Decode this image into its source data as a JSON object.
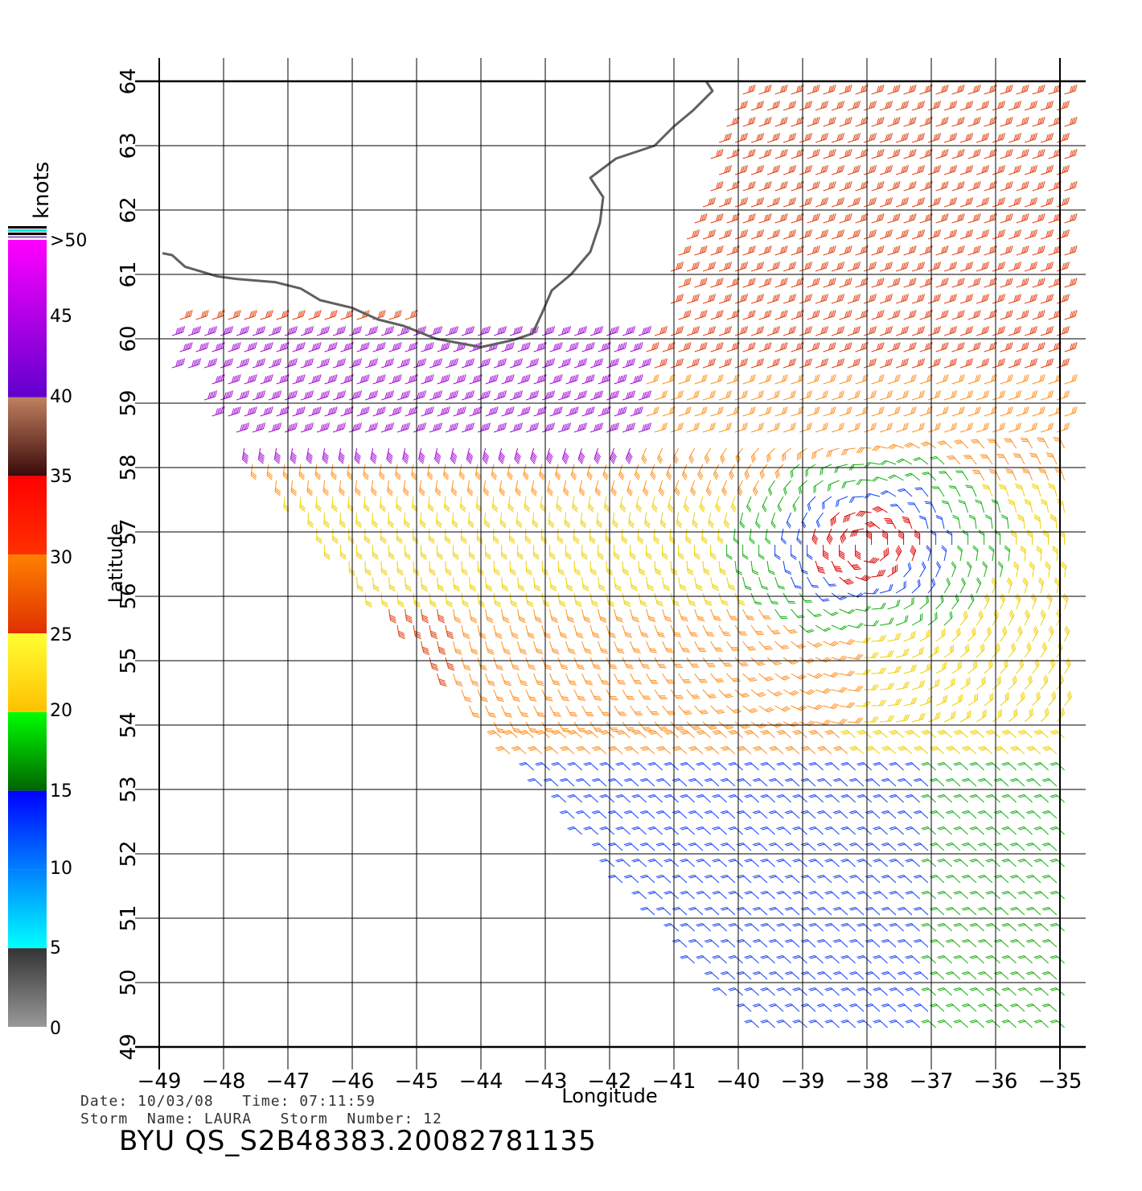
{
  "map": {
    "xlabel": "Longitude",
    "ylabel": "Latitude",
    "lon_range": [
      -49,
      -35
    ],
    "lat_range": [
      49,
      64
    ],
    "lon_ticks": [
      "−49",
      "−48",
      "−47",
      "−46",
      "−45",
      "−44",
      "−43",
      "−42",
      "−41",
      "−40",
      "−39",
      "−38",
      "−37",
      "−36",
      "−35"
    ],
    "lat_ticks": [
      "49",
      "50",
      "51",
      "52",
      "53",
      "54",
      "55",
      "56",
      "57",
      "58",
      "59",
      "60",
      "61",
      "62",
      "63",
      "64"
    ],
    "coastline_color": "#606060",
    "grid_color": "#000000"
  },
  "colorbar": {
    "unit_label": "knots",
    "labels": [
      ">50",
      "45",
      "40",
      "35",
      "30",
      "25",
      "20",
      "15",
      "10",
      "5",
      "0"
    ],
    "bands": [
      {
        "from": 0,
        "to": 5,
        "top": "#333333",
        "bottom": "#999999"
      },
      {
        "from": 5,
        "to": 10,
        "top": "#0080ff",
        "bottom": "#00ffff"
      },
      {
        "from": 10,
        "to": 15,
        "top": "#0000ff",
        "bottom": "#0080ff"
      },
      {
        "from": 15,
        "to": 20,
        "top": "#00ff00",
        "bottom": "#006400"
      },
      {
        "from": 20,
        "to": 25,
        "top": "#ffff33",
        "bottom": "#ffc000"
      },
      {
        "from": 25,
        "to": 30,
        "top": "#ff8000",
        "bottom": "#e03000"
      },
      {
        "from": 30,
        "to": 35,
        "top": "#ff0000",
        "bottom": "#ff3000"
      },
      {
        "from": 35,
        "to": 40,
        "top": "#c08060",
        "bottom": "#3a0a0a"
      },
      {
        "from": 40,
        "to": 50,
        "top": "#ff00ff",
        "bottom": "#6000cc"
      }
    ]
  },
  "footer": {
    "date_line": "Date: 10/03/08   Time: 07:11:59",
    "storm_line": "Storm  Name: LAURA   Storm  Number: 12",
    "file_id": "BYU  QS_S2B48383.20082781135"
  }
}
